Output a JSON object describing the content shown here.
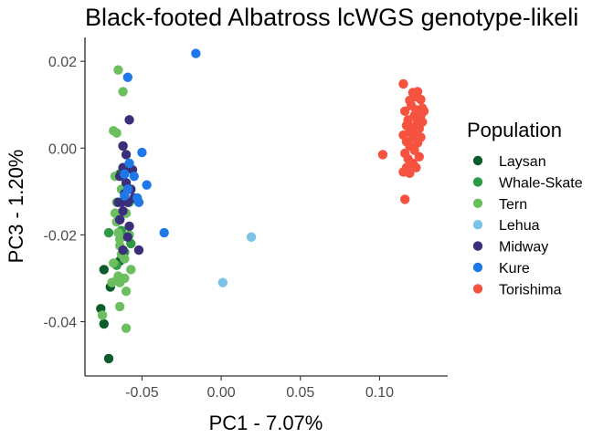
{
  "chart_data": {
    "type": "scatter",
    "title": "Black-footed Albatross lcWGS genotype-likeli",
    "xlabel": "PC1 - 7.07%",
    "ylabel": "PC3 - 1.20%",
    "xlim": [
      -0.086,
      0.143
    ],
    "ylim": [
      -0.0525,
      0.0255
    ],
    "x_ticks": [
      -0.05,
      0.0,
      0.05,
      0.1
    ],
    "x_tick_labels": [
      "-0.05",
      "0.00",
      "0.05",
      "0.10"
    ],
    "y_ticks": [
      -0.04,
      -0.02,
      0.0,
      0.02
    ],
    "y_tick_labels": [
      "-0.04",
      "-0.02",
      "0.00",
      "0.02"
    ],
    "grid": false,
    "legend": {
      "title": "Population",
      "position": "right"
    },
    "series": [
      {
        "name": "Laysan",
        "color": "#0a5c2b",
        "points": [
          [
            -0.076,
            -0.037
          ],
          [
            -0.074,
            -0.0405
          ],
          [
            -0.074,
            -0.028
          ],
          [
            -0.07,
            -0.032
          ],
          [
            -0.071,
            -0.0485
          ],
          [
            -0.064,
            -0.006
          ],
          [
            -0.064,
            -0.026
          ]
        ]
      },
      {
        "name": "Whale-Skate",
        "color": "#2e9a45",
        "points": [
          [
            -0.071,
            -0.0195
          ],
          [
            -0.066,
            -0.027
          ],
          [
            -0.063,
            -0.019
          ],
          [
            -0.061,
            -0.024
          ],
          [
            -0.057,
            -0.022
          ],
          [
            -0.058,
            -0.0125
          ],
          [
            -0.062,
            -0.005
          ]
        ]
      },
      {
        "name": "Tern",
        "color": "#6cbf5f",
        "points": [
          [
            -0.065,
            0.018
          ],
          [
            -0.062,
            0.013
          ],
          [
            -0.068,
            0.004
          ],
          [
            -0.066,
            0.0035
          ],
          [
            -0.062,
            0.0005
          ],
          [
            -0.067,
            -0.0065
          ],
          [
            -0.066,
            -0.0125
          ],
          [
            -0.067,
            -0.015
          ],
          [
            -0.066,
            -0.017
          ],
          [
            -0.065,
            -0.0195
          ],
          [
            -0.064,
            -0.021
          ],
          [
            -0.064,
            -0.0225
          ],
          [
            -0.063,
            -0.0245
          ],
          [
            -0.061,
            -0.0255
          ],
          [
            -0.068,
            -0.0265
          ],
          [
            -0.065,
            -0.0295
          ],
          [
            -0.066,
            -0.0305
          ],
          [
            -0.069,
            -0.031
          ],
          [
            -0.064,
            -0.031
          ],
          [
            -0.064,
            -0.0365
          ],
          [
            -0.06,
            -0.0415
          ],
          [
            -0.075,
            -0.0385
          ],
          [
            -0.06,
            -0.015
          ],
          [
            -0.058,
            -0.02
          ],
          [
            -0.057,
            -0.028
          ],
          [
            -0.06,
            -0.033
          ],
          [
            -0.061,
            -0.03
          ],
          [
            -0.063,
            -0.0095
          ]
        ]
      },
      {
        "name": "Lehua",
        "color": "#7cc4e6",
        "points": [
          [
            0.019,
            -0.0205
          ],
          [
            0.001,
            -0.031
          ]
        ]
      },
      {
        "name": "Midway",
        "color": "#3a2f7a",
        "points": [
          [
            -0.058,
            0.0065
          ],
          [
            -0.062,
            0.0005
          ],
          [
            -0.06,
            -0.0015
          ],
          [
            -0.058,
            -0.0045
          ],
          [
            -0.062,
            -0.0045
          ],
          [
            -0.056,
            -0.005
          ],
          [
            -0.064,
            -0.0065
          ],
          [
            -0.06,
            -0.008
          ],
          [
            -0.057,
            -0.0095
          ],
          [
            -0.061,
            -0.0105
          ],
          [
            -0.063,
            -0.0125
          ],
          [
            -0.065,
            -0.0125
          ],
          [
            -0.059,
            -0.0125
          ],
          [
            -0.055,
            -0.0115
          ],
          [
            -0.062,
            -0.0145
          ],
          [
            -0.064,
            -0.0165
          ],
          [
            -0.058,
            -0.018
          ],
          [
            -0.059,
            -0.0205
          ],
          [
            -0.052,
            -0.0235
          ],
          [
            -0.062,
            -0.0235
          ],
          [
            -0.064,
            -0.0165
          ]
        ]
      },
      {
        "name": "Kure",
        "color": "#1f78e8",
        "points": [
          [
            -0.016,
            0.0218
          ],
          [
            -0.059,
            0.0163
          ],
          [
            -0.05,
            -0.001
          ],
          [
            -0.058,
            -0.0035
          ],
          [
            -0.061,
            -0.006
          ],
          [
            -0.055,
            -0.0065
          ],
          [
            -0.047,
            -0.0085
          ],
          [
            -0.059,
            -0.0095
          ],
          [
            -0.061,
            -0.011
          ],
          [
            -0.053,
            -0.0115
          ],
          [
            -0.052,
            -0.0125
          ],
          [
            -0.036,
            -0.0195
          ]
        ]
      },
      {
        "name": "Torishima",
        "color": "#f5533f",
        "points": [
          [
            0.115,
            0.0148
          ],
          [
            0.121,
            0.0128
          ],
          [
            0.124,
            0.013
          ],
          [
            0.123,
            0.0118
          ],
          [
            0.119,
            0.011
          ],
          [
            0.126,
            0.0112
          ],
          [
            0.12,
            0.0098
          ],
          [
            0.127,
            0.0092
          ],
          [
            0.123,
            0.0088
          ],
          [
            0.128,
            0.0085
          ],
          [
            0.116,
            0.0085
          ],
          [
            0.122,
            0.0075
          ],
          [
            0.126,
            0.0075
          ],
          [
            0.118,
            0.0065
          ],
          [
            0.124,
            0.0062
          ],
          [
            0.127,
            0.006
          ],
          [
            0.117,
            0.0052
          ],
          [
            0.121,
            0.0048
          ],
          [
            0.125,
            0.0045
          ],
          [
            0.119,
            0.0038
          ],
          [
            0.123,
            0.0036
          ],
          [
            0.115,
            0.003
          ],
          [
            0.121,
            0.0025
          ],
          [
            0.126,
            0.0025
          ],
          [
            0.117,
            0.0015
          ],
          [
            0.124,
            0.0012
          ],
          [
            0.119,
            0.0005
          ],
          [
            0.122,
            -0.0005
          ],
          [
            0.116,
            -0.0012
          ],
          [
            0.102,
            -0.0015
          ],
          [
            0.125,
            -0.002
          ],
          [
            0.118,
            -0.0025
          ],
          [
            0.121,
            -0.0035
          ],
          [
            0.117,
            -0.0045
          ],
          [
            0.123,
            -0.0045
          ],
          [
            0.115,
            -0.0055
          ],
          [
            0.119,
            -0.0058
          ],
          [
            0.116,
            -0.0118
          ]
        ]
      }
    ]
  }
}
